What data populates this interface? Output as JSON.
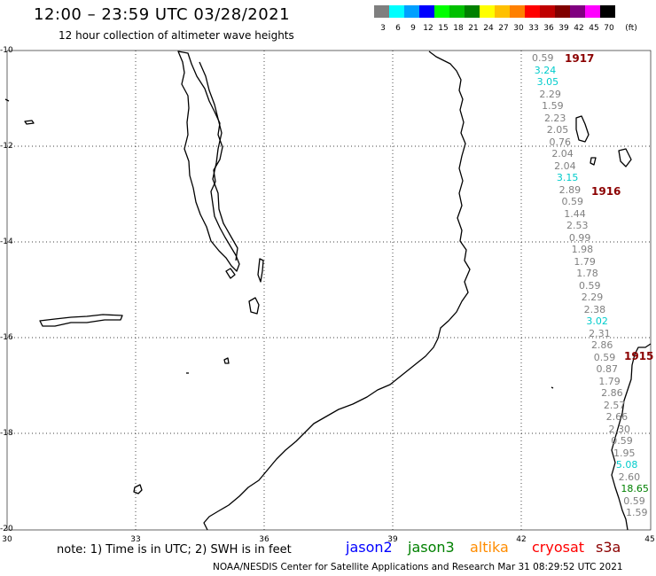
{
  "header": {
    "title": "12:00 – 23:59 UTC 03/28/2021",
    "subtitle": "12 hour collection of altimeter wave heights"
  },
  "legend": {
    "unit": "(ft)",
    "bins": [
      {
        "label": "3",
        "color": "#7f7f7f"
      },
      {
        "label": "6",
        "color": "#00ffff"
      },
      {
        "label": "9",
        "color": "#00a0ff"
      },
      {
        "label": "12",
        "color": "#0000ff"
      },
      {
        "label": "15",
        "color": "#00ff00"
      },
      {
        "label": "18",
        "color": "#00c000"
      },
      {
        "label": "21",
        "color": "#008000"
      },
      {
        "label": "24",
        "color": "#ffff00"
      },
      {
        "label": "27",
        "color": "#ffc000"
      },
      {
        "label": "30",
        "color": "#ff8000"
      },
      {
        "label": "33",
        "color": "#ff0000"
      },
      {
        "label": "36",
        "color": "#c00000"
      },
      {
        "label": "39",
        "color": "#800000"
      },
      {
        "label": "42",
        "color": "#800080"
      },
      {
        "label": "45",
        "color": "#ff00ff"
      },
      {
        "label": "70",
        "color": "#000000"
      }
    ]
  },
  "axes": {
    "lat_labels": [
      "-10",
      "-12",
      "-14",
      "-16",
      "-18",
      "-20"
    ],
    "lon_labels": [
      "30",
      "33",
      "36",
      "39",
      "42",
      "45"
    ]
  },
  "footer": {
    "note": "note: 1) Time is in UTC; 2) SWH is in feet",
    "satellites": [
      {
        "name": "jason2",
        "color": "#0000ff"
      },
      {
        "name": "jason3",
        "color": "#008000"
      },
      {
        "name": "altika",
        "color": "#ff8c00"
      },
      {
        "name": "cryosat",
        "color": "#ff0000"
      },
      {
        "name": "s3a",
        "color": "#8b0000"
      }
    ],
    "credit": "NOAA/NESDIS Center for Satellite Applications and Research   Mar 31 08:29:52 UTC 2021"
  },
  "passes": [
    "1917",
    "1916",
    "1915"
  ],
  "wave_values": [
    "0.59",
    "3.24",
    "3.05",
    "2.29",
    "1.59",
    "2.23",
    "2.05",
    "0.76",
    "2.04",
    "2.04",
    "3.15",
    "2.89",
    "0.59",
    "1.44",
    "2.53",
    "0.99",
    "1.98",
    "1.79",
    "1.78",
    "0.59",
    "2.29",
    "2.38",
    "3.02",
    "2.31",
    "2.86",
    "0.59",
    "0.87",
    "1.79",
    "2.86",
    "2.57",
    "2.66",
    "2.30",
    "0.59",
    "1.95",
    "5.08",
    "2.60",
    "18.65",
    "0.59",
    "1.59"
  ],
  "wave_colors": [
    "#808080",
    "#00cccc",
    "#00cccc",
    "#808080",
    "#808080",
    "#808080",
    "#808080",
    "#808080",
    "#808080",
    "#808080",
    "#00cccc",
    "#808080",
    "#808080",
    "#808080",
    "#808080",
    "#808080",
    "#808080",
    "#808080",
    "#808080",
    "#808080",
    "#808080",
    "#808080",
    "#00cccc",
    "#808080",
    "#808080",
    "#808080",
    "#808080",
    "#808080",
    "#808080",
    "#808080",
    "#808080",
    "#808080",
    "#808080",
    "#808080",
    "#00cccc",
    "#808080",
    "#008000",
    "#808080",
    "#808080"
  ]
}
